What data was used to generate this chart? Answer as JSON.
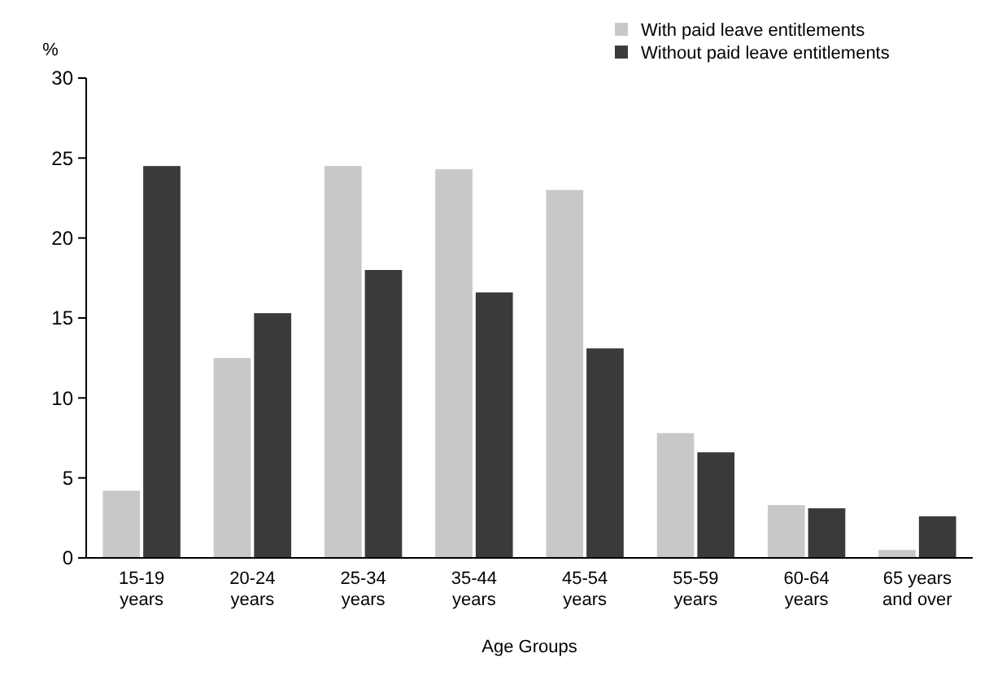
{
  "chart_data": {
    "type": "bar",
    "ylabel": "%",
    "xlabel": "Age Groups",
    "categories": [
      "15-19 years",
      "20-24 years",
      "25-34 years",
      "35-44 years",
      "45-54 years",
      "55-59 years",
      "60-64 years",
      "65 years and over"
    ],
    "series": [
      {
        "name": "With paid leave entitlements",
        "color": "#c8c8c8",
        "values": [
          4.2,
          12.5,
          24.5,
          24.3,
          23,
          7.8,
          3.3,
          0.5
        ]
      },
      {
        "name": "Without paid leave entitlements",
        "color": "#3a3a3a",
        "values": [
          24.5,
          15.3,
          18,
          16.6,
          13.1,
          6.6,
          3.1,
          2.6
        ]
      }
    ],
    "ylim": [
      0,
      30
    ],
    "yticks": [
      0,
      5,
      10,
      15,
      20,
      25,
      30
    ],
    "legend": "top right"
  }
}
